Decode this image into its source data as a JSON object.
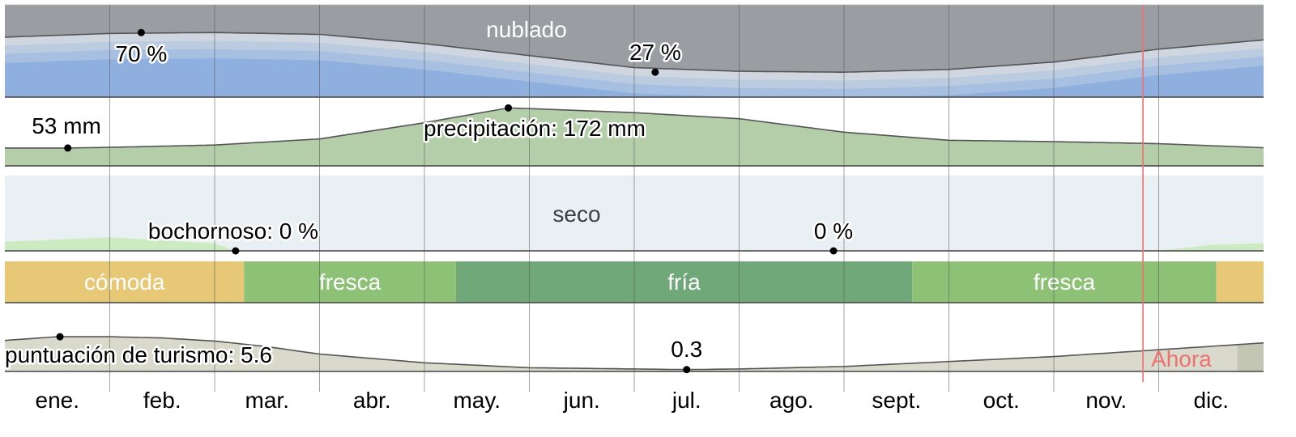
{
  "chart_data": [
    {
      "type": "area",
      "name": "cloud",
      "x": [
        0,
        1,
        2,
        3,
        4,
        5,
        6,
        7,
        8,
        9,
        10,
        11,
        12
      ],
      "overcast_percent": [
        65,
        69,
        70,
        68,
        58,
        45,
        32,
        28,
        27,
        30,
        38,
        52,
        62
      ],
      "title": "nublado",
      "annotations": [
        {
          "text": "70 %",
          "x": 1.3,
          "y": 70
        },
        {
          "text": "27 %",
          "x": 6.2,
          "y": 27
        }
      ]
    },
    {
      "type": "area",
      "name": "precipitation",
      "x": [
        0,
        0.6,
        1,
        2,
        3,
        4,
        4.8,
        5,
        6,
        7,
        8,
        9,
        10,
        11,
        12
      ],
      "values_mm": [
        53,
        53,
        55,
        62,
        80,
        128,
        172,
        170,
        158,
        140,
        100,
        76,
        72,
        66,
        54
      ],
      "annotations": [
        {
          "text": "53 mm",
          "x": 0.6,
          "y": 53
        },
        {
          "text": "precipitación: 172 mm",
          "x": 5.1,
          "y": 172
        }
      ]
    },
    {
      "type": "area",
      "name": "humidity",
      "x": [
        0,
        1,
        2,
        2.2,
        3,
        4,
        5,
        6,
        7,
        7.9,
        9,
        10,
        11,
        11.5,
        12
      ],
      "muggy_percent": [
        12,
        18,
        10,
        0,
        0,
        0,
        0,
        0,
        0,
        0,
        0,
        0,
        0,
        8,
        10
      ],
      "title": "seco",
      "annotations": [
        {
          "text": "bochornoso: 0 %",
          "x": 2.2,
          "y": 0
        },
        {
          "text": "0 %",
          "x": 7.9,
          "y": 0
        }
      ]
    },
    {
      "type": "bands",
      "name": "temperature-feel",
      "bands": [
        {
          "label": "cómoda",
          "start": 0,
          "end": 2.28,
          "color": "#e7c876"
        },
        {
          "label": "fresca",
          "start": 2.28,
          "end": 4.3,
          "color": "#8dc176"
        },
        {
          "label": "fría",
          "start": 4.3,
          "end": 8.65,
          "color": "#71a879"
        },
        {
          "label": "fresca",
          "start": 8.65,
          "end": 11.55,
          "color": "#8dc176"
        },
        {
          "label": "",
          "start": 11.55,
          "end": 12,
          "color": "#e7c876"
        }
      ]
    },
    {
      "type": "area",
      "name": "tourism",
      "x": [
        0,
        0.5,
        1,
        1.5,
        2,
        2.5,
        3,
        4,
        5,
        6,
        6.5,
        7,
        8,
        9,
        10,
        11,
        12
      ],
      "values": [
        5.0,
        5.6,
        5.6,
        5.4,
        4.9,
        4.0,
        2.8,
        1.4,
        0.6,
        0.4,
        0.3,
        0.4,
        0.8,
        1.6,
        2.4,
        3.5,
        4.6
      ],
      "ylim": [
        0,
        6
      ],
      "annotations": [
        {
          "text": "puntuación de turismo: 5.6",
          "x": 0.5,
          "y": 5.6
        },
        {
          "text": "0.3",
          "x": 6.5,
          "y": 0.3
        }
      ]
    }
  ],
  "months": [
    "ene.",
    "feb.",
    "mar.",
    "abr.",
    "may.",
    "jun.",
    "jul.",
    "ago.",
    "sept.",
    "oct.",
    "nov.",
    "dic."
  ],
  "now_marker": {
    "label": "Ahora",
    "x": 10.85,
    "color": "#f07070"
  },
  "colors": {
    "cloud_clear": "#8fb0de",
    "cloud_bands": [
      "#a7c0e2",
      "#bccce0",
      "#cfd6e0"
    ],
    "cloud_overcast": "#9a9da2",
    "precip_fill": "#b3cea9",
    "dry_fill": "#e8f0f4",
    "muggy_fill": "#cdebc0",
    "tourism_fill": "#d9d9cc",
    "tourism_tail": "#c4c6b4",
    "gridline": "#555555",
    "divider": "#444444"
  }
}
